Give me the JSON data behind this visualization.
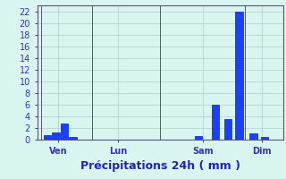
{
  "title": "Précipitations 24h ( mm )",
  "bar_color": "#1a3fff",
  "bar_edge_color": "#0022cc",
  "background_color": "#d8f5f0",
  "grid_color": "#b0cece",
  "axis_color": "#555577",
  "tick_label_color": "#3333bb",
  "xlabel_color": "#2222bb",
  "xlim": [
    0,
    29
  ],
  "ylim": [
    0,
    23
  ],
  "yticks": [
    0,
    2,
    4,
    6,
    8,
    10,
    12,
    14,
    16,
    18,
    20,
    22
  ],
  "xtick_positions": [
    2.5,
    9.5,
    19.5,
    26.5
  ],
  "xtick_labels": [
    "Ven",
    "Lun",
    "Sam",
    "Dim"
  ],
  "day_dividers": [
    0.5,
    6.5,
    14.5,
    24.5,
    29.0
  ],
  "bar_positions": [
    1.2,
    2.2,
    3.2,
    4.2,
    19.0,
    21.0,
    22.5,
    23.8,
    25.5,
    26.8
  ],
  "bar_heights": [
    0.7,
    1.3,
    2.7,
    0.5,
    0.6,
    6.0,
    3.5,
    22.0,
    1.0,
    0.5
  ],
  "bar_width": 0.9,
  "ylabel_fontsize": 7,
  "xlabel_fontsize": 9,
  "tick_fontsize": 7
}
